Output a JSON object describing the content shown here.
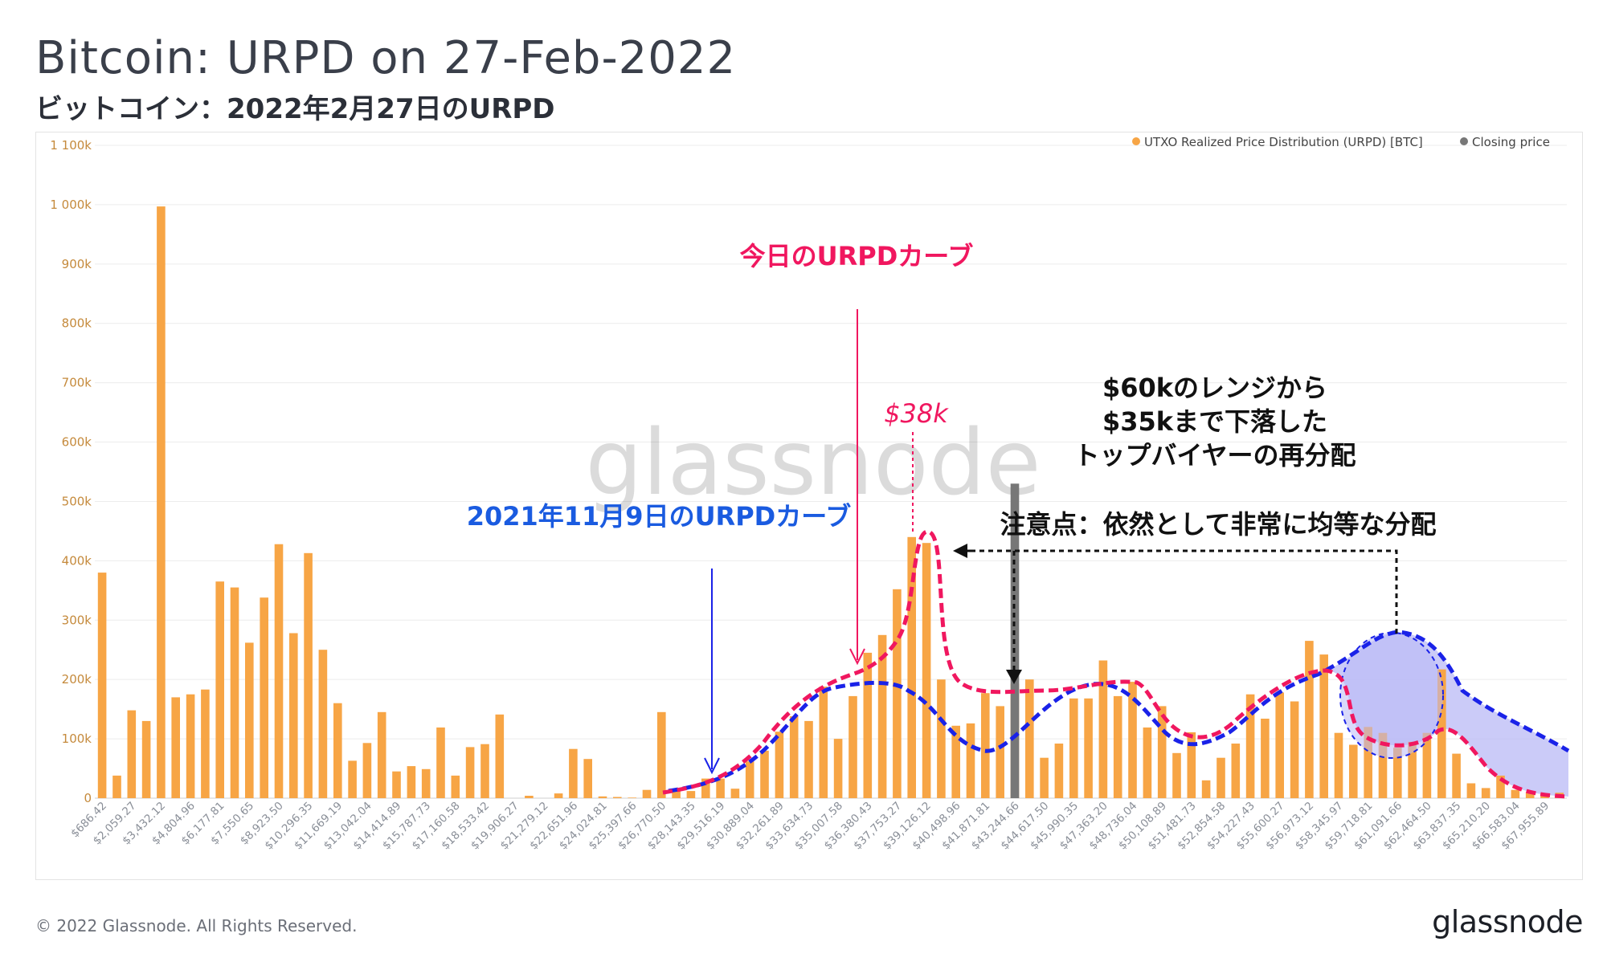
{
  "title": "Bitcoin: URPD on 27-Feb-2022",
  "subtitle": "ビットコイン：2022年2月27日のURPD",
  "footer": {
    "copyright": "© 2022 Glassnode. All Rights Reserved.",
    "brand": "glassnode"
  },
  "watermark": "glassnode",
  "colors": {
    "bar": "#f7a545",
    "closing": "#777777",
    "pink": "#f0175f",
    "blue": "#1a22e8",
    "fill": "#b9b9f5"
  },
  "annotations": {
    "today_curve": "今日のURPDカーブ",
    "nov_curve": "2021年11月9日のURPDカーブ",
    "price_38k": "$38k",
    "redistribution_1": "$60kのレンジから",
    "redistribution_2": "$35kまで下落した",
    "redistribution_3": "トップバイヤーの再分配",
    "note": "注意点：依然として非常に均等な分配"
  },
  "chart_data": {
    "type": "bar",
    "ylim": [
      0,
      1100
    ],
    "yticks": [
      {
        "v": 0,
        "label": "0"
      },
      {
        "v": 100,
        "label": "100k"
      },
      {
        "v": 200,
        "label": "200k"
      },
      {
        "v": 300,
        "label": "300k"
      },
      {
        "v": 400,
        "label": "400k"
      },
      {
        "v": 500,
        "label": "500k"
      },
      {
        "v": 600,
        "label": "600k"
      },
      {
        "v": 700,
        "label": "700k"
      },
      {
        "v": 800,
        "label": "800k"
      },
      {
        "v": 900,
        "label": "900k"
      },
      {
        "v": 1000,
        "label": "1 000k"
      },
      {
        "v": 1100,
        "label": "1 100k"
      }
    ],
    "xtick_labels": [
      "$686.42",
      "$2,059.27",
      "$3,432.12",
      "$4,804.96",
      "$6,177.81",
      "$7,550.65",
      "$8,923.50",
      "$10,296.35",
      "$11,669.19",
      "$13,042.04",
      "$14,414.89",
      "$15,787.73",
      "$17,160.58",
      "$18,533.42",
      "$19,906.27",
      "$21,279.12",
      "$22,651.96",
      "$24,024.81",
      "$25,397.66",
      "$26,770.50",
      "$28,143.35",
      "$29,516.19",
      "$30,889.04",
      "$32,261.89",
      "$33,634.73",
      "$35,007.58",
      "$36,380.43",
      "$37,753.27",
      "$39,126.12",
      "$40,498.96",
      "$41,871.81",
      "$43,244.66",
      "$44,617.50",
      "$45,990.35",
      "$47,363.20",
      "$48,736.04",
      "$50,108.89",
      "$51,481.73",
      "$52,854.58",
      "$54,227.43",
      "$55,600.27",
      "$56,973.12",
      "$58,345.97",
      "$59,718.81",
      "$61,091.66",
      "$62,464.50",
      "$63,837.35",
      "$65,210.20",
      "$66,583.04",
      "$67,955.89"
    ],
    "series": [
      {
        "name": "UTXO Realized Price Distribution (URPD) [BTC]",
        "values": [
          380,
          38,
          148,
          130,
          997,
          170,
          175,
          183,
          365,
          355,
          262,
          338,
          428,
          278,
          413,
          250,
          160,
          63,
          93,
          145,
          45,
          54,
          49,
          119,
          38,
          86,
          91,
          141,
          0,
          4,
          0,
          8,
          83,
          66,
          3,
          2,
          1,
          14,
          145,
          16,
          12,
          33,
          33,
          16,
          62,
          80,
          112,
          138,
          130,
          188,
          100,
          172,
          245,
          275,
          352,
          440,
          430,
          200,
          122,
          126,
          177,
          155,
          193,
          200,
          68,
          92,
          168,
          168,
          232,
          172,
          196,
          119,
          155,
          76,
          111,
          30,
          68,
          92,
          175,
          134,
          178,
          163,
          265,
          242,
          110,
          90,
          120,
          110,
          85,
          95,
          110,
          217,
          75,
          25,
          17,
          38,
          14,
          10,
          8,
          9
        ]
      },
      {
        "name": "Closing price",
        "closing_index": 62,
        "value": 530
      }
    ],
    "legend_position": "top-right",
    "grid": true
  }
}
